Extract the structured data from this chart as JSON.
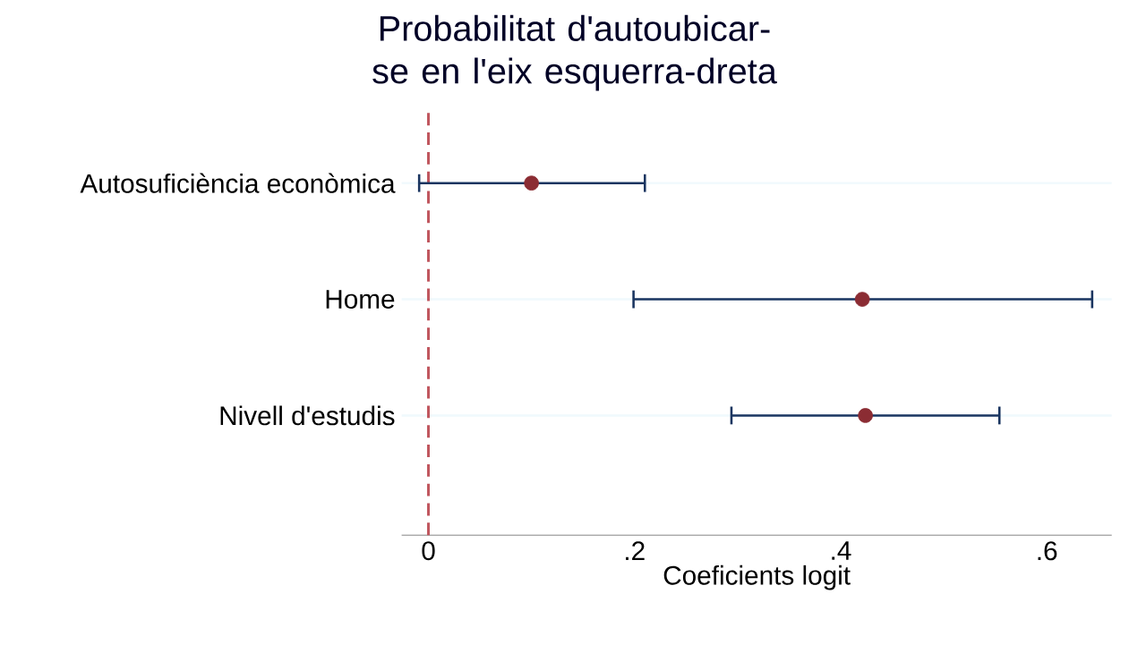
{
  "chart_data": {
    "type": "scatter",
    "orientation": "horizontal",
    "title": "Probabilitat d'autoubicar-se en l'eix esquerra-dreta",
    "xlabel": "Coeficients logit",
    "categories": [
      "Autosuficiència econòmica",
      "Home",
      "Nivell d'estudis"
    ],
    "values": [
      0.1,
      0.421,
      0.424
    ],
    "errors": [
      [
        -0.009,
        0.21
      ],
      [
        0.199,
        0.644
      ],
      [
        0.294,
        0.554
      ]
    ],
    "color": "#8b2c33",
    "marker": "circle",
    "xlim": [
      -0.026,
      0.663
    ],
    "xticks": [
      {
        "value": 0,
        "label": "0"
      },
      {
        "value": 0.2,
        "label": ".2"
      },
      {
        "value": 0.4,
        "label": ".4"
      },
      {
        "value": 0.6,
        "label": ".6"
      }
    ],
    "grid": "y",
    "ref_lines": [
      {
        "axis": "x",
        "value": 0,
        "color": "#c0565e",
        "line_style": "dashed"
      }
    ]
  }
}
